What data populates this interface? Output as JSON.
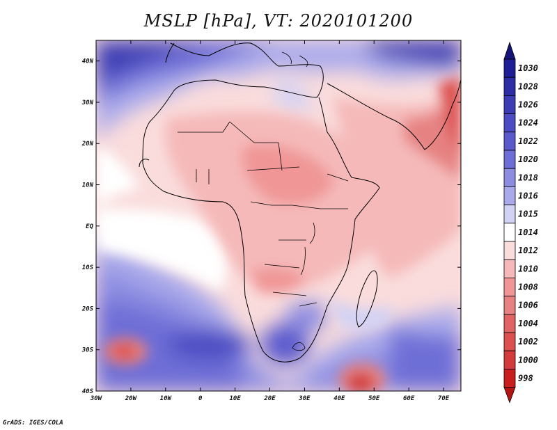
{
  "title": "MSLP [hPa], VT: 2020101200",
  "credit": "GrADS: IGES/COLA",
  "map": {
    "variable": "MSLP",
    "units": "hPa",
    "valid_time": "2020101200",
    "lon_range": [
      -30,
      75
    ],
    "lat_range": [
      -40,
      45
    ],
    "x_ticks": [
      {
        "value": -30,
        "label": "30W"
      },
      {
        "value": -20,
        "label": "20W"
      },
      {
        "value": -10,
        "label": "10W"
      },
      {
        "value": 0,
        "label": "0"
      },
      {
        "value": 10,
        "label": "10E"
      },
      {
        "value": 20,
        "label": "20E"
      },
      {
        "value": 30,
        "label": "30E"
      },
      {
        "value": 40,
        "label": "40E"
      },
      {
        "value": 50,
        "label": "50E"
      },
      {
        "value": 60,
        "label": "60E"
      },
      {
        "value": 70,
        "label": "70E"
      }
    ],
    "y_ticks": [
      {
        "value": 40,
        "label": "40N"
      },
      {
        "value": 30,
        "label": "30N"
      },
      {
        "value": 20,
        "label": "20N"
      },
      {
        "value": 10,
        "label": "10N"
      },
      {
        "value": 0,
        "label": "EQ"
      },
      {
        "value": -10,
        "label": "10S"
      },
      {
        "value": -20,
        "label": "20S"
      },
      {
        "value": -30,
        "label": "30S"
      },
      {
        "value": -40,
        "label": "40S"
      }
    ]
  },
  "colorbar": {
    "levels": [
      {
        "label": "1030",
        "color": "#1e1e96"
      },
      {
        "label": "1028",
        "color": "#2d2da5"
      },
      {
        "label": "1026",
        "color": "#3c3cb4"
      },
      {
        "label": "1024",
        "color": "#4b4bc3"
      },
      {
        "label": "1022",
        "color": "#5a5acd"
      },
      {
        "label": "1020",
        "color": "#6e6ed7"
      },
      {
        "label": "1018",
        "color": "#8c8ce1"
      },
      {
        "label": "1016",
        "color": "#aaaaeb"
      },
      {
        "label": "1015",
        "color": "#d2d2f5"
      },
      {
        "label": "1014",
        "color": "#ffffff"
      },
      {
        "label": "1012",
        "color": "#fadcdc"
      },
      {
        "label": "1010",
        "color": "#f5b9b9"
      },
      {
        "label": "1008",
        "color": "#f09696"
      },
      {
        "label": "1006",
        "color": "#e68282"
      },
      {
        "label": "1004",
        "color": "#e16464"
      },
      {
        "label": "1002",
        "color": "#dc5050"
      },
      {
        "label": "1000",
        "color": "#d23c3c"
      },
      {
        "label": "998",
        "color": "#c81e1e"
      }
    ],
    "top_arrow_color": "#141478",
    "bottom_arrow_color": "#b41414"
  }
}
